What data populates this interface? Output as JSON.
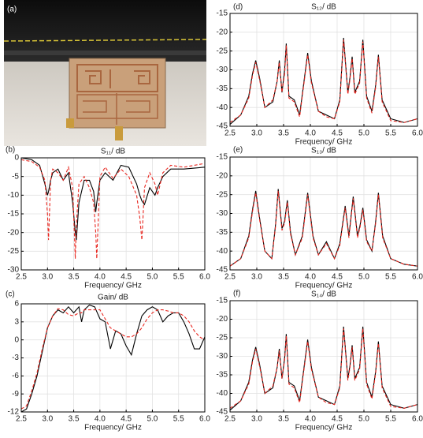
{
  "photo": {
    "label": "(a)"
  },
  "chart_data": [
    {
      "type": "line",
      "label": "(b)",
      "title": "S₁₁/ dB",
      "xlabel": "Frequency/ GHz",
      "grid": true,
      "xlim": [
        2.5,
        6.0
      ],
      "xticks": [
        2.5,
        {
          "value": 3,
          "label": "3.0"
        },
        3.5,
        {
          "value": 4,
          "label": "4.0"
        },
        4.5,
        {
          "value": 5,
          "label": "5.0"
        },
        5.5,
        {
          "value": 6,
          "label": "6.0"
        }
      ],
      "ylim": [
        -30,
        0
      ],
      "yticks": [
        -30,
        -25,
        -20,
        -15,
        -10,
        -5,
        0
      ],
      "x": [
        2.5,
        2.7,
        2.85,
        2.95,
        3.0,
        3.02,
        3.06,
        3.1,
        3.2,
        3.3,
        3.4,
        3.48,
        3.53,
        3.55,
        3.6,
        3.7,
        3.8,
        3.88,
        3.92,
        3.94,
        4.0,
        4.1,
        4.25,
        4.4,
        4.55,
        4.7,
        4.76,
        4.8,
        4.85,
        4.95,
        5.05,
        5.1,
        5.2,
        5.35,
        5.6,
        6.0
      ],
      "series": [
        {
          "color": "#000000",
          "style": "solid",
          "values": [
            0,
            -0.5,
            -2,
            -7,
            -10,
            -9,
            -6,
            -4,
            -3,
            -6,
            -4,
            -12,
            -20,
            -22,
            -12,
            -6,
            -6,
            -9,
            -14.5,
            -12,
            -6,
            -4,
            -6,
            -2,
            -2.5,
            -7,
            -10,
            -11.5,
            -12.5,
            -8,
            -10,
            -8,
            -5,
            -3,
            -3,
            -2.5
          ]
        },
        {
          "color": "#e8261f",
          "style": "dashed",
          "values": [
            -0.5,
            -1,
            -2.5,
            -6,
            -15,
            -22,
            -6,
            -3,
            -4,
            -6,
            -2.5,
            -8,
            -27,
            -18,
            -7,
            -5,
            -8,
            -12,
            -20,
            -27,
            -5,
            -2.5,
            -5.5,
            -3,
            -5,
            -10,
            -16,
            -22,
            -8,
            -4,
            -7,
            -10,
            -4,
            -2,
            -2.5,
            -1.5
          ]
        }
      ]
    },
    {
      "type": "line",
      "label": "(c)",
      "title": "Gain/ dB",
      "xlabel": "Frequency/ GHz",
      "grid": true,
      "xlim": [
        2.5,
        6.0
      ],
      "xticks": [
        2.5,
        {
          "value": 3,
          "label": "3.0"
        },
        3.5,
        {
          "value": 4,
          "label": "4.0"
        },
        4.5,
        {
          "value": 5,
          "label": "5.0"
        },
        5.5,
        {
          "value": 6,
          "label": "6.0"
        }
      ],
      "ylim": [
        -12,
        6
      ],
      "yticks": [
        -12,
        -9,
        -6,
        -3,
        0,
        3,
        6
      ],
      "x": [
        2.5,
        2.6,
        2.7,
        2.8,
        2.9,
        3.0,
        3.1,
        3.2,
        3.3,
        3.4,
        3.5,
        3.6,
        3.65,
        3.7,
        3.8,
        3.9,
        4.0,
        4.1,
        4.2,
        4.3,
        4.4,
        4.5,
        4.6,
        4.7,
        4.8,
        4.9,
        5.0,
        5.1,
        5.2,
        5.3,
        5.4,
        5.5,
        5.6,
        5.7,
        5.8,
        5.9,
        6.0
      ],
      "series": [
        {
          "color": "#000000",
          "style": "solid",
          "values": [
            -12,
            -11.5,
            -9,
            -6,
            -2,
            2,
            4,
            5,
            4.5,
            5.5,
            4.5,
            5.5,
            3,
            5,
            5.8,
            5.5,
            3.5,
            3,
            -1.5,
            1.5,
            1,
            -1,
            -2.5,
            1,
            4,
            5,
            5.5,
            5,
            3,
            4,
            4.5,
            4.5,
            3,
            1,
            -1.5,
            -1.5,
            0.5
          ]
        },
        {
          "color": "#e8261f",
          "style": "dashed",
          "values": [
            -11.5,
            -11,
            -8.5,
            -5.5,
            -1.5,
            2,
            4,
            5.2,
            5,
            4.2,
            4,
            4.5,
            4.5,
            5,
            5,
            5,
            5,
            3.5,
            2,
            1.5,
            1,
            0.5,
            0.5,
            1,
            2,
            3.5,
            4.5,
            5,
            5,
            4.8,
            4.5,
            4.5,
            4,
            3,
            1.5,
            0.5,
            0
          ]
        }
      ]
    },
    {
      "type": "line",
      "label": "(d)",
      "title": "S₁₂/ dB",
      "xlabel": "Frequency/ GHz",
      "grid": true,
      "xlim": [
        2.5,
        6.0
      ],
      "xticks": [
        2.5,
        {
          "value": 3,
          "label": "3.0"
        },
        3.5,
        {
          "value": 4,
          "label": "4.0"
        },
        4.5,
        {
          "value": 5,
          "label": "5.0"
        },
        5.5,
        {
          "value": 6,
          "label": "6.0"
        }
      ],
      "ylim": [
        -45,
        -15
      ],
      "yticks": [
        -45,
        -40,
        -35,
        -30,
        -25,
        -20,
        -15
      ],
      "x": [
        2.5,
        2.7,
        2.85,
        2.92,
        2.98,
        3.05,
        3.15,
        3.3,
        3.38,
        3.42,
        3.47,
        3.52,
        3.55,
        3.6,
        3.7,
        3.8,
        3.9,
        3.95,
        4.02,
        4.15,
        4.3,
        4.45,
        4.55,
        4.62,
        4.7,
        4.74,
        4.78,
        4.83,
        4.92,
        4.98,
        5.05,
        5.15,
        5.22,
        5.27,
        5.34,
        5.5,
        5.75,
        6.0
      ],
      "series": [
        {
          "color": "#000000",
          "style": "solid",
          "values": [
            -44.5,
            -42,
            -37,
            -31,
            -27.5,
            -32,
            -40,
            -38.5,
            -33,
            -27.5,
            -36,
            -30,
            -23,
            -37,
            -38,
            -42,
            -31,
            -25.5,
            -33,
            -41,
            -42,
            -43,
            -38,
            -21.5,
            -36,
            -32,
            -26.5,
            -36,
            -33,
            -22,
            -37,
            -41,
            -34,
            -26,
            -38,
            -43,
            -44,
            -43
          ]
        },
        {
          "color": "#e8261f",
          "style": "dashed",
          "values": [
            -44,
            -42,
            -37.5,
            -31.5,
            -28,
            -32.5,
            -40,
            -38,
            -33,
            -28,
            -36,
            -31,
            -23.5,
            -37.5,
            -38.5,
            -42.5,
            -31.5,
            -26,
            -33.5,
            -41,
            -42.5,
            -43,
            -38.5,
            -22,
            -36.5,
            -32.5,
            -27,
            -36.5,
            -33.5,
            -22.5,
            -37.5,
            -41.5,
            -34.5,
            -26.5,
            -38.5,
            -43.5,
            -44,
            -43
          ]
        }
      ]
    },
    {
      "type": "line",
      "label": "(e)",
      "title": "S₁₃/ dB",
      "xlabel": "Frequency/ GHz",
      "grid": true,
      "xlim": [
        2.5,
        6.0
      ],
      "xticks": [
        2.5,
        {
          "value": 3,
          "label": "3.0"
        },
        3.5,
        {
          "value": 4,
          "label": "4.0"
        },
        4.5,
        {
          "value": 5,
          "label": "5.0"
        },
        5.5,
        {
          "value": 6,
          "label": "6.0"
        }
      ],
      "ylim": [
        -45,
        -15
      ],
      "yticks": [
        -45,
        -40,
        -35,
        -30,
        -25,
        -20,
        -15
      ],
      "x": [
        2.5,
        2.7,
        2.85,
        2.92,
        2.98,
        3.05,
        3.15,
        3.28,
        3.35,
        3.4,
        3.47,
        3.52,
        3.57,
        3.63,
        3.72,
        3.85,
        3.95,
        4.05,
        4.15,
        4.3,
        4.45,
        4.55,
        4.65,
        4.72,
        4.8,
        4.88,
        4.93,
        4.98,
        5.05,
        5.15,
        5.22,
        5.27,
        5.35,
        5.5,
        5.75,
        6.0
      ],
      "series": [
        {
          "color": "#000000",
          "style": "solid",
          "values": [
            -44,
            -42,
            -36,
            -29,
            -24,
            -31,
            -40,
            -42,
            -33,
            -23.5,
            -34,
            -32,
            -26.5,
            -35,
            -41,
            -36,
            -24.5,
            -36,
            -41,
            -37.5,
            -42,
            -38,
            -28,
            -36,
            -25.5,
            -36,
            -33,
            -28.5,
            -37,
            -40,
            -32,
            -24.5,
            -36,
            -42,
            -43.5,
            -44
          ]
        },
        {
          "color": "#e8261f",
          "style": "dashed",
          "values": [
            -44,
            -42,
            -36.5,
            -29.5,
            -24.5,
            -31.5,
            -40,
            -42,
            -33.5,
            -24,
            -34.5,
            -32.5,
            -27,
            -35.5,
            -41,
            -36.5,
            -25,
            -36.5,
            -41,
            -38,
            -42,
            -38.5,
            -28.5,
            -36.5,
            -26,
            -36.5,
            -33.5,
            -29,
            -37.5,
            -40,
            -32.5,
            -25,
            -36.5,
            -42,
            -43.5,
            -44
          ]
        }
      ]
    },
    {
      "type": "line",
      "label": "(f)",
      "title": "S₁₄/ dB",
      "xlabel": "Frequency/ GHz",
      "grid": true,
      "xlim": [
        2.5,
        6.0
      ],
      "xticks": [
        2.5,
        {
          "value": 3,
          "label": "3.0"
        },
        3.5,
        {
          "value": 4,
          "label": "4.0"
        },
        4.5,
        {
          "value": 5,
          "label": "5.0"
        },
        5.5,
        {
          "value": 6,
          "label": "6.0"
        }
      ],
      "ylim": [
        -45,
        -15
      ],
      "yticks": [
        -45,
        -40,
        -35,
        -30,
        -25,
        -20,
        -15
      ],
      "x": [
        2.5,
        2.7,
        2.85,
        2.92,
        2.98,
        3.05,
        3.15,
        3.3,
        3.38,
        3.42,
        3.47,
        3.52,
        3.55,
        3.6,
        3.7,
        3.8,
        3.9,
        3.95,
        4.02,
        4.15,
        4.3,
        4.45,
        4.55,
        4.62,
        4.7,
        4.74,
        4.78,
        4.83,
        4.92,
        4.98,
        5.05,
        5.15,
        5.22,
        5.27,
        5.34,
        5.5,
        5.75,
        6.0
      ],
      "series": [
        {
          "color": "#000000",
          "style": "solid",
          "values": [
            -44.5,
            -42,
            -37,
            -31,
            -27.5,
            -32,
            -40,
            -38.5,
            -33,
            -28,
            -36,
            -30.5,
            -24,
            -37,
            -38,
            -42,
            -31,
            -25.5,
            -33,
            -41,
            -42,
            -43,
            -38,
            -22,
            -36,
            -32.5,
            -27,
            -36,
            -33,
            -22,
            -37,
            -41,
            -34,
            -26,
            -38,
            -43,
            -44,
            -43
          ]
        },
        {
          "color": "#e8261f",
          "style": "dashed",
          "values": [
            -44,
            -42,
            -37.5,
            -31.5,
            -28,
            -32.5,
            -40,
            -38,
            -33,
            -28.5,
            -36,
            -31,
            -24.5,
            -37.5,
            -38.5,
            -42.5,
            -31.5,
            -26,
            -33.5,
            -41,
            -42.5,
            -43,
            -38.5,
            -22.5,
            -36.5,
            -33,
            -27.5,
            -36.5,
            -33.5,
            -22.5,
            -37.5,
            -41.5,
            -34.5,
            -26.5,
            -38.5,
            -43.5,
            -44,
            -43
          ]
        }
      ]
    }
  ]
}
